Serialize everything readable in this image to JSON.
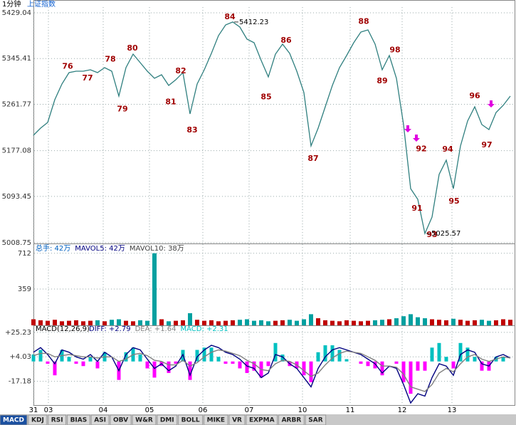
{
  "chart_data": [
    {
      "type": "line",
      "period": "1分钟",
      "title": "上证指数",
      "color": "#2f7f7f",
      "label_color": "#a00000",
      "signal_color": "#e000e0",
      "grid": true,
      "xlim": [
        0,
        67.3
      ],
      "xticks": [
        {
          "value": 0,
          "label": "31"
        },
        {
          "value": 2.1,
          "label": "03"
        },
        {
          "value": 9.8,
          "label": "04"
        },
        {
          "value": 16.3,
          "label": "05"
        },
        {
          "value": 23.8,
          "label": "06"
        },
        {
          "value": 30.3,
          "label": "07"
        },
        {
          "value": 37.8,
          "label": "10"
        },
        {
          "value": 44.5,
          "label": "11"
        },
        {
          "value": 51.8,
          "label": "12"
        },
        {
          "value": 58.8,
          "label": "13"
        }
      ],
      "ylim": [
        5007.4,
        5439.4
      ],
      "yticks": [
        5429.04,
        5345.41,
        5261.77,
        5177.08,
        5093.45,
        5008.75
      ],
      "values": [
        5205.2,
        5218.2,
        5228.6,
        5270.3,
        5298.9,
        5319.7,
        5322.3,
        5322.3,
        5324.9,
        5319.7,
        5328.8,
        5322.3,
        5276.8,
        5328.8,
        5353.5,
        5337.9,
        5322.3,
        5309.3,
        5315.8,
        5296.3,
        5306.7,
        5319.7,
        5244.2,
        5298.9,
        5324.9,
        5354.8,
        5387.4,
        5406.9,
        5412.23,
        5403.0,
        5380.9,
        5374.3,
        5341.8,
        5311.9,
        5353.5,
        5371.7,
        5354.8,
        5322.3,
        5283.3,
        5185.7,
        5218.2,
        5257.2,
        5296.3,
        5328.8,
        5350.9,
        5374.3,
        5393.9,
        5397.8,
        5371.7,
        5324.9,
        5350.9,
        5309.3,
        5224.7,
        5107.6,
        5088.1,
        5025.57,
        5055.6,
        5133.6,
        5159.6,
        5107.6,
        5185.7,
        5231.2,
        5257.2,
        5224.7,
        5215.6,
        5246.8,
        5259.8,
        5276.8
      ],
      "annotations": [
        {
          "text": "76",
          "x": 4.8,
          "y": 5331
        },
        {
          "text": "77",
          "x": 7.6,
          "y": 5309
        },
        {
          "text": "78",
          "x": 10.8,
          "y": 5344
        },
        {
          "text": "79",
          "x": 12.5,
          "y": 5253
        },
        {
          "text": "80",
          "x": 13.9,
          "y": 5364
        },
        {
          "text": "81",
          "x": 19.3,
          "y": 5266
        },
        {
          "text": "82",
          "x": 20.7,
          "y": 5322
        },
        {
          "text": "83",
          "x": 22.3,
          "y": 5214
        },
        {
          "text": "84",
          "x": 27.6,
          "y": 5421
        },
        {
          "text": "85",
          "x": 32.7,
          "y": 5275
        },
        {
          "text": "86",
          "x": 35.5,
          "y": 5378
        },
        {
          "text": "87",
          "x": 39.3,
          "y": 5162
        },
        {
          "text": "88",
          "x": 46.4,
          "y": 5413
        },
        {
          "text": "89",
          "x": 49,
          "y": 5304
        },
        {
          "text": "98",
          "x": 50.8,
          "y": 5361
        },
        {
          "text": "91",
          "x": 53.9,
          "y": 5071
        },
        {
          "text": "92",
          "x": 54.5,
          "y": 5180
        },
        {
          "text": "93",
          "x": 56,
          "y": 5023
        },
        {
          "text": "94",
          "x": 58.2,
          "y": 5179
        },
        {
          "text": "95",
          "x": 59.1,
          "y": 5084
        },
        {
          "text": "96",
          "x": 62,
          "y": 5277
        },
        {
          "text": "97",
          "x": 63.7,
          "y": 5187
        }
      ],
      "extremes": [
        {
          "x": 28,
          "y": 5412.23
        },
        {
          "x": 55,
          "y": 5025.57
        }
      ],
      "signals": [
        {
          "x": 52.6,
          "y": 5211.7
        },
        {
          "x": 53.8,
          "y": 5194.8
        },
        {
          "x": 64.3,
          "y": 5257.2
        }
      ]
    },
    {
      "type": "bar",
      "header": [
        {
          "text": "总手: 42万",
          "color": "#0060c0"
        },
        {
          "text": "MAVOL5: 42万",
          "color": "#000080"
        },
        {
          "text": "MAVOL10: 38万",
          "color": "#404040"
        }
      ],
      "up_color": "#c00000",
      "down_color": "#00a0a0",
      "ylim": [
        0,
        802
      ],
      "yticks": [
        712,
        359
      ],
      "values": [
        60,
        50,
        45,
        55,
        40,
        45,
        50,
        40,
        45,
        50,
        40,
        55,
        60,
        45,
        40,
        50,
        45,
        712,
        60,
        40,
        45,
        50,
        120,
        55,
        45,
        50,
        40,
        45,
        50,
        55,
        60,
        45,
        50,
        40,
        45,
        50,
        55,
        45,
        60,
        110,
        70,
        50,
        45,
        40,
        50,
        45,
        40,
        45,
        50,
        55,
        60,
        70,
        90,
        110,
        80,
        70,
        60,
        55,
        50,
        65,
        55,
        45,
        50,
        55,
        45,
        50,
        60,
        55
      ]
    },
    {
      "type": "macd",
      "title": "MACD(12,26,9)",
      "ylim": [
        -38.4,
        31.3
      ],
      "yticks": [
        {
          "value": 25.23,
          "label": "+25.23"
        },
        {
          "value": 4.03,
          "label": "+4.03"
        },
        -17.18
      ],
      "series": [
        {
          "name": "DIFF: +2.79",
          "color": "#000080",
          "values": [
            8,
            12,
            6,
            -2,
            10,
            8,
            4,
            2,
            6,
            0,
            8,
            4,
            -8,
            6,
            12,
            10,
            2,
            -6,
            -2,
            -8,
            -4,
            6,
            -12,
            4,
            10,
            14,
            12,
            8,
            6,
            2,
            -4,
            -6,
            -14,
            -10,
            6,
            4,
            -2,
            -6,
            -14,
            -22,
            -6,
            4,
            10,
            12,
            10,
            8,
            6,
            2,
            -2,
            -10,
            -4,
            -6,
            -20,
            -36,
            -28,
            -30,
            -14,
            -2,
            -4,
            -12,
            6,
            10,
            8,
            -2,
            -4,
            4,
            6,
            3
          ]
        },
        {
          "name": "DEA: +1.64",
          "color": "#808080",
          "values": [
            5,
            7,
            7,
            4,
            5,
            6,
            5,
            4,
            4,
            3,
            4,
            4,
            0,
            2,
            6,
            7,
            5,
            1,
            0,
            -3,
            -3,
            1,
            -4,
            -1,
            4,
            8,
            10,
            9,
            7,
            5,
            1,
            -2,
            -7,
            -8,
            -2,
            1,
            0,
            -3,
            -8,
            -13,
            -10,
            -3,
            3,
            7,
            9,
            8,
            7,
            4,
            1,
            -4,
            -4,
            -5,
            -11,
            -22,
            -24,
            -26,
            -20,
            -10,
            -6,
            -9,
            -2,
            4,
            6,
            2,
            0,
            2,
            4,
            3
          ]
        },
        {
          "name": "MACD: +2.31",
          "color": "#00c0c0",
          "neg_color": "#ff00ff",
          "style": "bar",
          "values": [
            6,
            10,
            -2,
            -12,
            10,
            4,
            -2,
            -4,
            4,
            -6,
            8,
            0,
            -16,
            8,
            12,
            6,
            -6,
            -14,
            -4,
            -10,
            -2,
            10,
            -16,
            10,
            12,
            12,
            4,
            -2,
            -2,
            -6,
            -10,
            -8,
            -14,
            -4,
            16,
            6,
            -4,
            -6,
            -12,
            -18,
            8,
            14,
            14,
            10,
            2,
            0,
            -2,
            -4,
            -6,
            -12,
            0,
            -2,
            -18,
            -28,
            -8,
            -8,
            12,
            16,
            4,
            -6,
            16,
            12,
            4,
            -8,
            -8,
            4,
            4,
            0
          ]
        }
      ]
    }
  ],
  "tabs": [
    "MACD",
    "KDJ",
    "RSI",
    "BIAS",
    "ASI",
    "OBV",
    "W&R",
    "DMI",
    "BOLL",
    "MIKE",
    "VR",
    "EXPMA",
    "ARBR",
    "SAR"
  ]
}
